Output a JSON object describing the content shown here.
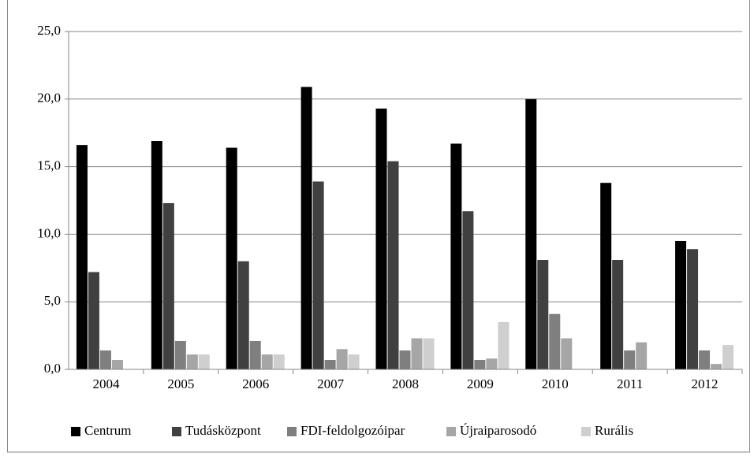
{
  "chart_data": {
    "type": "bar",
    "categories": [
      "2004",
      "2005",
      "2006",
      "2007",
      "2008",
      "2009",
      "2010",
      "2011",
      "2012"
    ],
    "series": [
      {
        "name": "Centrum",
        "color": "#000000",
        "values": [
          16.6,
          16.9,
          16.4,
          20.9,
          19.3,
          16.7,
          20.0,
          13.8,
          9.5
        ]
      },
      {
        "name": "Tudásközpont",
        "color": "#404040",
        "values": [
          7.2,
          12.3,
          8.0,
          13.9,
          15.4,
          11.7,
          8.1,
          8.1,
          8.9
        ]
      },
      {
        "name": "FDI-feldolgozóipar",
        "color": "#7f7f7f",
        "values": [
          1.4,
          2.1,
          2.1,
          0.7,
          1.4,
          0.7,
          4.1,
          1.4,
          1.4
        ]
      },
      {
        "name": "Újraiparosodó",
        "color": "#a6a6a6",
        "values": [
          0.7,
          1.1,
          1.1,
          1.5,
          2.3,
          0.8,
          2.3,
          2.0,
          0.4
        ]
      },
      {
        "name": "Rurális",
        "color": "#cfcfcf",
        "values": [
          null,
          1.1,
          1.1,
          1.1,
          2.3,
          3.5,
          null,
          null,
          1.8
        ]
      }
    ],
    "ylim": [
      0,
      25
    ],
    "yticks": [
      {
        "value": 0,
        "label": "0,0"
      },
      {
        "value": 5,
        "label": "5,0"
      },
      {
        "value": 10,
        "label": "10,0"
      },
      {
        "value": 15,
        "label": "15,0"
      },
      {
        "value": 20,
        "label": "20,0"
      },
      {
        "value": 25,
        "label": "25,0"
      }
    ],
    "grid": true,
    "legend": "bottom"
  }
}
